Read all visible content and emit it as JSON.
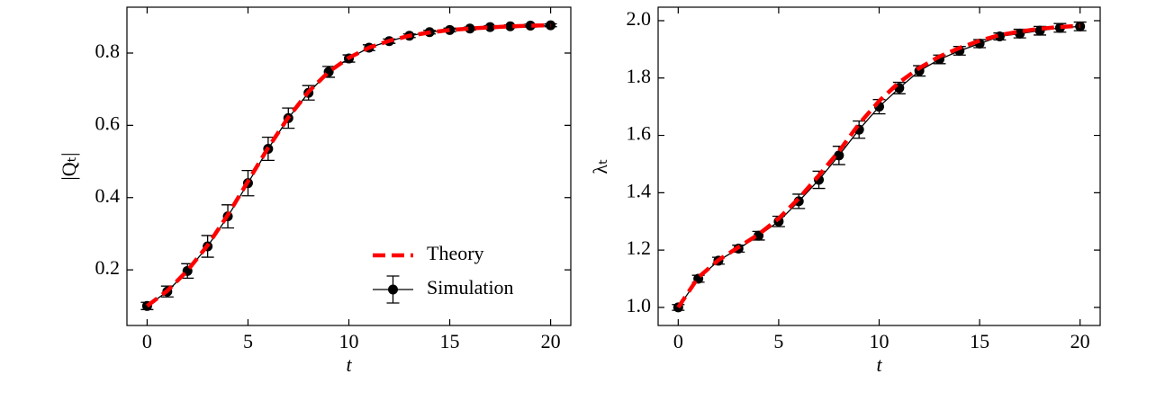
{
  "chart_data": [
    {
      "type": "line",
      "xlabel": "t",
      "ylabel": "|Qₜ|",
      "x": [
        0,
        1,
        2,
        3,
        4,
        5,
        6,
        7,
        8,
        9,
        10,
        11,
        12,
        13,
        14,
        15,
        16,
        17,
        18,
        19,
        20
      ],
      "xlim": [
        -1,
        21
      ],
      "xticks": [
        0,
        5,
        10,
        15,
        20
      ],
      "ylim": [
        0.046,
        0.927
      ],
      "yticks": [
        0.2,
        0.4,
        0.6,
        0.8
      ],
      "legend": "lower right",
      "series": [
        {
          "name": "Theory",
          "color": "#ff0000",
          "style": "dashed",
          "values": [
            0.1,
            0.142,
            0.198,
            0.268,
            0.352,
            0.445,
            0.538,
            0.622,
            0.693,
            0.748,
            0.787,
            0.815,
            0.834,
            0.848,
            0.857,
            0.864,
            0.868,
            0.871,
            0.874,
            0.876,
            0.877
          ]
        },
        {
          "name": "Simulation",
          "color": "#000000",
          "style": "errorbar",
          "values": [
            0.1,
            0.14,
            0.197,
            0.265,
            0.348,
            0.44,
            0.535,
            0.62,
            0.69,
            0.748,
            0.785,
            0.815,
            0.833,
            0.848,
            0.858,
            0.864,
            0.868,
            0.872,
            0.874,
            0.876,
            0.877
          ],
          "errors": [
            0.01,
            0.015,
            0.02,
            0.03,
            0.032,
            0.035,
            0.032,
            0.028,
            0.02,
            0.015,
            0.01,
            0.008,
            0.006,
            0.005,
            0.005,
            0.005,
            0.004,
            0.004,
            0.004,
            0.004,
            0.004
          ]
        }
      ]
    },
    {
      "type": "line",
      "xlabel": "t",
      "ylabel": "λₜ",
      "x": [
        0,
        1,
        2,
        3,
        4,
        5,
        6,
        7,
        8,
        9,
        10,
        11,
        12,
        13,
        14,
        15,
        16,
        17,
        18,
        19,
        20
      ],
      "xlim": [
        -1,
        21
      ],
      "xticks": [
        0,
        5,
        10,
        15,
        20
      ],
      "ylim": [
        0.937,
        2.047
      ],
      "yticks": [
        1.0,
        1.2,
        1.4,
        1.6,
        1.8,
        2.0
      ],
      "series": [
        {
          "color": "#ff0000",
          "style": "dashed",
          "values": [
            1.0,
            1.105,
            1.165,
            1.21,
            1.255,
            1.31,
            1.38,
            1.46,
            1.545,
            1.64,
            1.72,
            1.785,
            1.835,
            1.875,
            1.905,
            1.93,
            1.95,
            1.962,
            1.972,
            1.978,
            1.982
          ]
        },
        {
          "color": "#000000",
          "style": "errorbar",
          "values": [
            1.0,
            1.1,
            1.163,
            1.205,
            1.25,
            1.3,
            1.37,
            1.445,
            1.53,
            1.62,
            1.7,
            1.765,
            1.825,
            1.865,
            1.895,
            1.92,
            1.945,
            1.955,
            1.965,
            1.975,
            1.98
          ],
          "errors": [
            0.01,
            0.012,
            0.012,
            0.012,
            0.015,
            0.018,
            0.025,
            0.03,
            0.032,
            0.03,
            0.025,
            0.02,
            0.018,
            0.015,
            0.015,
            0.014,
            0.012,
            0.015,
            0.015,
            0.015,
            0.015
          ]
        }
      ]
    }
  ]
}
